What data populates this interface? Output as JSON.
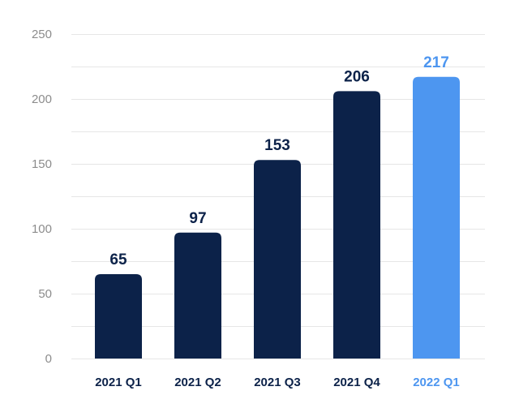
{
  "chart_data": {
    "type": "bar",
    "title": "",
    "xlabel": "",
    "ylabel": "",
    "categories": [
      "2021 Q1",
      "2021 Q2",
      "2021 Q3",
      "2021 Q4",
      "2022 Q1"
    ],
    "values": [
      65,
      97,
      153,
      206,
      217
    ],
    "data_labels": [
      "65",
      "97",
      "153",
      "206",
      "217"
    ],
    "y_ticks": [
      "0",
      "50",
      "100",
      "150",
      "200",
      "250"
    ],
    "y_tick_values": [
      0,
      50,
      100,
      150,
      200,
      250
    ],
    "ylim": [
      0,
      250
    ],
    "grid": true,
    "legend": "none",
    "highlight_index": 4,
    "colors": {
      "bar": "#0c2249",
      "highlight": "#4d96f0",
      "label": "#0c2249",
      "grid": "#e6e6e6",
      "tick": "#8c8c8c"
    }
  }
}
